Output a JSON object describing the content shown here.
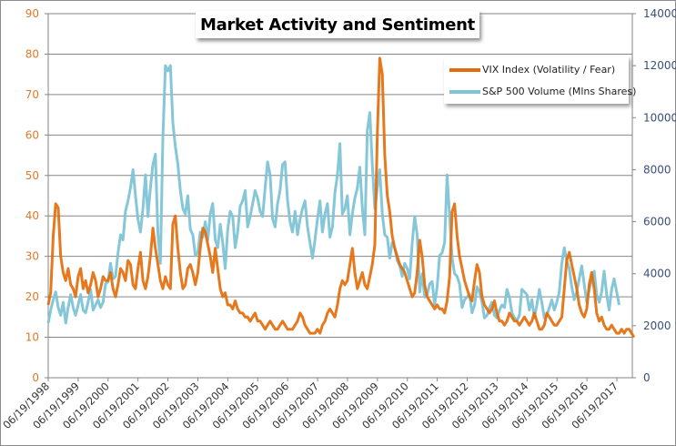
{
  "chart_data": {
    "type": "line",
    "title": "Market Activity and Sentiment",
    "xlabel": "",
    "ylabel_left": "",
    "ylabel_right": "",
    "grid": true,
    "legend_position": "top-right",
    "x_ticks": [
      "06/19/1998",
      "06/19/1999",
      "06/19/2000",
      "06/19/2001",
      "06/19/2002",
      "06/19/2003",
      "06/19/2004",
      "06/19/2005",
      "06/19/2006",
      "06/19/2007",
      "06/19/2008",
      "06/19/2009",
      "06/19/2010",
      "06/19/2011",
      "06/19/2012",
      "06/19/2013",
      "06/19/2014",
      "06/19/2015",
      "06/19/2016",
      "06/19/2017"
    ],
    "x_range": [
      1998.0,
      2017.5
    ],
    "y_left": {
      "range": [
        0,
        90
      ],
      "ticks": [
        0,
        10,
        20,
        30,
        40,
        50,
        60,
        70,
        80,
        90
      ],
      "color": "#e07a2a"
    },
    "y_right": {
      "range": [
        0,
        14000
      ],
      "ticks": [
        0,
        2000,
        4000,
        6000,
        8000,
        10000,
        12000,
        14000
      ],
      "color": "#3a4f7a"
    },
    "series": [
      {
        "name": "VIX Index (Volatility / Fear)",
        "axis": "left",
        "color": "#e46c0a",
        "x_start": 1998.0,
        "x_step": 0.0833,
        "values": [
          18,
          21,
          35,
          43,
          42,
          30,
          26,
          24,
          27,
          23,
          22,
          20,
          25,
          27,
          22,
          24,
          21,
          23,
          26,
          24,
          20,
          22,
          25,
          24,
          24,
          26,
          22,
          20,
          23,
          27,
          26,
          24,
          29,
          28,
          23,
          22,
          27,
          31,
          24,
          22,
          25,
          30,
          37,
          32,
          28,
          24,
          22,
          25,
          23,
          22,
          38,
          40,
          32,
          26,
          22,
          23,
          27,
          28,
          26,
          23,
          26,
          32,
          37,
          36,
          33,
          30,
          26,
          32,
          27,
          22,
          20,
          21,
          18,
          18,
          17,
          19,
          17,
          16,
          16,
          15,
          15,
          14,
          15,
          16,
          14,
          14,
          13,
          12,
          13,
          14,
          13,
          12,
          12,
          13,
          14,
          13,
          12,
          12,
          12,
          13,
          14,
          16,
          15,
          13,
          12,
          11,
          11,
          11,
          12,
          11,
          13,
          14,
          16,
          17,
          16,
          15,
          18,
          22,
          24,
          23,
          24,
          28,
          32,
          26,
          22,
          24,
          26,
          23,
          22,
          25,
          28,
          33,
          60,
          79,
          75,
          55,
          45,
          41,
          35,
          32,
          30,
          28,
          27,
          26,
          24,
          22,
          20,
          21,
          26,
          34,
          30,
          23,
          20,
          19,
          18,
          17,
          18,
          17,
          17,
          16,
          19,
          25,
          41,
          43,
          35,
          30,
          27,
          24,
          22,
          20,
          19,
          24,
          28,
          26,
          20,
          18,
          17,
          16,
          17,
          19,
          16,
          14,
          14,
          13,
          14,
          16,
          15,
          14,
          14,
          13,
          14,
          15,
          14,
          13,
          14,
          16,
          14,
          12,
          12,
          13,
          16,
          15,
          14,
          13,
          13,
          14,
          15,
          22,
          29,
          31,
          28,
          25,
          22,
          18,
          16,
          15,
          17,
          23,
          26,
          22,
          16,
          14,
          15,
          13,
          12,
          12,
          13,
          12,
          11,
          11,
          12,
          11,
          12,
          12,
          11,
          10
        ]
      },
      {
        "name": "S&P 500 Volume (Mlns Shares)",
        "axis": "right",
        "color": "#7ec4d6",
        "x_start": 1998.0,
        "x_step": 0.0833,
        "values": [
          2100,
          2600,
          3000,
          3300,
          2700,
          2400,
          2900,
          2100,
          2700,
          3200,
          2700,
          2400,
          2800,
          3200,
          2600,
          2500,
          2900,
          3400,
          2600,
          2800,
          3000,
          2700,
          2900,
          3600,
          3700,
          4400,
          3800,
          3900,
          4800,
          5500,
          5300,
          6400,
          6800,
          7300,
          8000,
          7000,
          6100,
          5600,
          6500,
          7800,
          6200,
          7300,
          8200,
          8600,
          5500,
          4400,
          9200,
          12000,
          11800,
          12000,
          9800,
          8900,
          8200,
          7200,
          6500,
          6300,
          7000,
          5700,
          5500,
          4700,
          4800,
          5600,
          5400,
          6000,
          5300,
          6300,
          6700,
          5300,
          5000,
          5900,
          5200,
          4200,
          5700,
          6400,
          6200,
          5000,
          5600,
          6600,
          6800,
          7200,
          5800,
          6200,
          6700,
          7200,
          6900,
          6400,
          6200,
          7300,
          8300,
          7800,
          6100,
          5800,
          6700,
          7200,
          8200,
          8300,
          6800,
          6000,
          5600,
          6400,
          5500,
          6100,
          6500,
          6800,
          5800,
          5200,
          4600,
          5300,
          6100,
          6800,
          5600,
          6300,
          6700,
          5400,
          5800,
          7100,
          7800,
          9000,
          6300,
          6500,
          7000,
          5500,
          6300,
          6900,
          7300,
          8100,
          6500,
          5500,
          9500,
          10200,
          8200,
          6500,
          7300,
          8000,
          6300,
          5500,
          5400,
          4600,
          5200,
          5000,
          4500,
          4300,
          3900,
          4400,
          4200,
          3800,
          5200,
          6200,
          5500,
          3300,
          4000,
          3100,
          3200,
          3600,
          3700,
          2800,
          3500,
          4700,
          4800,
          5200,
          7800,
          6200,
          4600,
          4000,
          3900,
          3600,
          2700,
          3000,
          3100,
          3200,
          2500,
          2800,
          3500,
          3300,
          2900,
          2300,
          2400,
          2700,
          2900,
          2400,
          2300,
          2600,
          2800,
          2700,
          3400,
          3100,
          2500,
          2300,
          2200,
          2400,
          3400,
          3300,
          3200,
          2600,
          3000,
          2300,
          2800,
          3400,
          2900,
          2300,
          2400,
          2700,
          3000,
          2600,
          2900,
          3300,
          4400,
          5000,
          4500,
          4200,
          3500,
          3000,
          3300,
          3800,
          4300,
          3600,
          2900,
          3400,
          3800,
          4100,
          3200,
          2900,
          3300,
          4100,
          3200,
          2600,
          3400,
          3800,
          3300,
          2800
        ]
      }
    ]
  }
}
